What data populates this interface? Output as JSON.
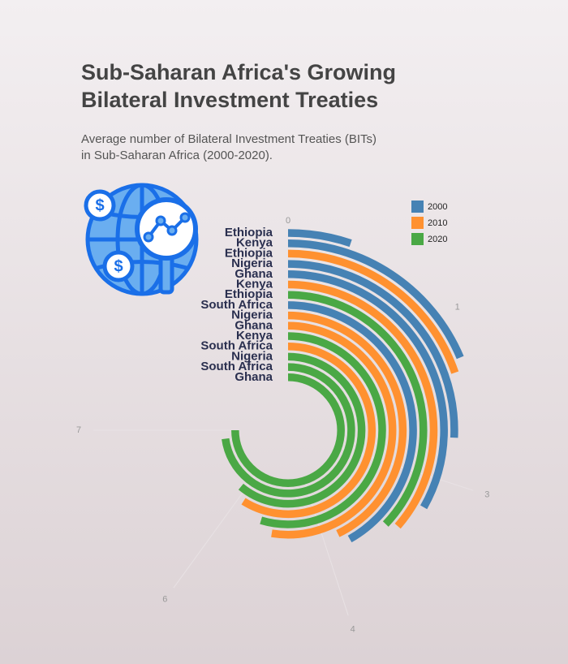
{
  "chart_data": {
    "type": "radial_bar",
    "title_lines": [
      "Sub-Saharan Africa's Growing",
      "Bilateral Investment Treaties"
    ],
    "subtitle_lines": [
      "Average number of Bilateral Investment Treaties (BITs)",
      "in Sub-Saharan Africa (2000-2020)."
    ],
    "series": [
      {
        "name": "2000",
        "color": "#4682b4"
      },
      {
        "name": "2010",
        "color": "#ff9130"
      },
      {
        "name": "2020",
        "color": "#4aa845"
      }
    ],
    "bars": [
      {
        "category": "Ethiopia",
        "year": "2000",
        "value": 0.48
      },
      {
        "category": "Kenya",
        "year": "2000",
        "value": 1.74
      },
      {
        "category": "Ethiopia",
        "year": "2010",
        "value": 1.84
      },
      {
        "category": "Nigeria",
        "year": "2000",
        "value": 2.4
      },
      {
        "category": "Ghana",
        "year": "2000",
        "value": 3.1
      },
      {
        "category": "Kenya",
        "year": "2010",
        "value": 3.4
      },
      {
        "category": "Ethiopia",
        "year": "2020",
        "value": 3.47
      },
      {
        "category": "South Africa",
        "year": "2000",
        "value": 3.9
      },
      {
        "category": "Nigeria",
        "year": "2010",
        "value": 4.0
      },
      {
        "category": "Ghana",
        "year": "2010",
        "value": 4.9
      },
      {
        "category": "Kenya",
        "year": "2020",
        "value": 5.1
      },
      {
        "category": "South Africa",
        "year": "2010",
        "value": 5.5
      },
      {
        "category": "Nigeria",
        "year": "2020",
        "value": 5.7
      },
      {
        "category": "South Africa",
        "year": "2020",
        "value": 6.8
      },
      {
        "category": "Ghana",
        "year": "2020",
        "value": 7.0
      }
    ],
    "xlim": [
      0,
      7
    ],
    "xticks": [
      0,
      {
        "value": 1.4,
        "label": "1"
      },
      {
        "value": 2.8,
        "label": "3"
      },
      {
        "value": 4.2,
        "label": "4"
      },
      {
        "value": 5.6,
        "label": "6"
      },
      7
    ],
    "grid": true
  }
}
